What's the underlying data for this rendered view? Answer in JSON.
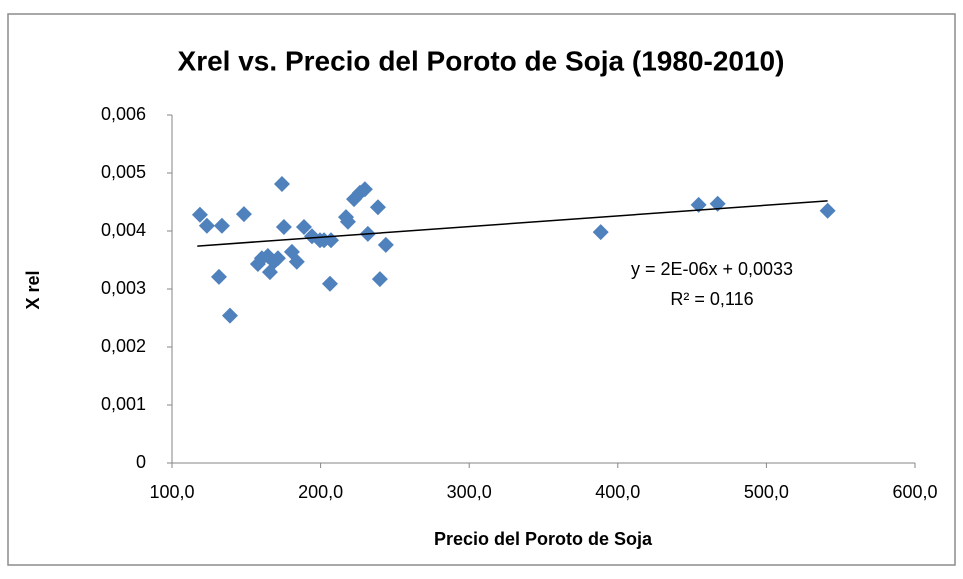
{
  "chart_data": {
    "type": "scatter",
    "title": "Xrel vs. Precio del Poroto de Soja (1980-2010)",
    "xlabel": "Precio del Poroto de Soja",
    "ylabel": "X rel",
    "series": [
      {
        "name": "X rel",
        "color": "#4f81bd",
        "x": [
          118.8,
          123.5,
          133.6,
          131.6,
          139.0,
          148.4,
          157.8,
          160.5,
          164.5,
          165.9,
          168.6,
          171.3,
          174.0,
          175.3,
          180.7,
          184.0,
          188.8,
          194.2,
          199.6,
          202.3,
          207.0,
          206.3,
          217.1,
          218.4,
          222.5,
          226.5,
          229.8,
          231.8,
          238.6,
          239.9,
          243.9,
          388.5,
          454.4,
          467.2,
          541.2
        ],
        "values": [
          0.00428,
          0.00409,
          0.00409,
          0.00321,
          0.00254,
          0.00429,
          0.00343,
          0.00353,
          0.00357,
          0.00329,
          0.00347,
          0.00353,
          0.00481,
          0.00407,
          0.00364,
          0.00347,
          0.00407,
          0.00391,
          0.00384,
          0.00384,
          0.00384,
          0.00309,
          0.00424,
          0.00416,
          0.00455,
          0.00466,
          0.00472,
          0.00395,
          0.00441,
          0.00317,
          0.00376,
          0.00398,
          0.00445,
          0.00447,
          0.00435
        ]
      }
    ],
    "trendline": {
      "color": "#000000",
      "x": [
        117.0,
        541.2
      ],
      "values": [
        0.00374,
        0.00452
      ]
    },
    "annotations": [
      "y = 2E-06x + 0,0033",
      "R² = 0,116"
    ],
    "xlim": [
      100,
      600
    ],
    "xticks": [
      {
        "value": 100,
        "label": "100,0"
      },
      {
        "value": 200,
        "label": "200,0"
      },
      {
        "value": 300,
        "label": "300,0"
      },
      {
        "value": 400,
        "label": "400,0"
      },
      {
        "value": 500,
        "label": "500,0"
      },
      {
        "value": 600,
        "label": "600,0"
      }
    ],
    "ylim": [
      0,
      0.006
    ],
    "yticks": [
      0,
      {
        "value": 0.001,
        "label": "0,001"
      },
      {
        "value": 0.002,
        "label": "0,002"
      },
      {
        "value": 0.003,
        "label": "0,003"
      },
      {
        "value": 0.004,
        "label": "0,004"
      },
      {
        "value": 0.005,
        "label": "0,005"
      },
      {
        "value": 0.006,
        "label": "0,006"
      }
    ],
    "grid": false
  }
}
